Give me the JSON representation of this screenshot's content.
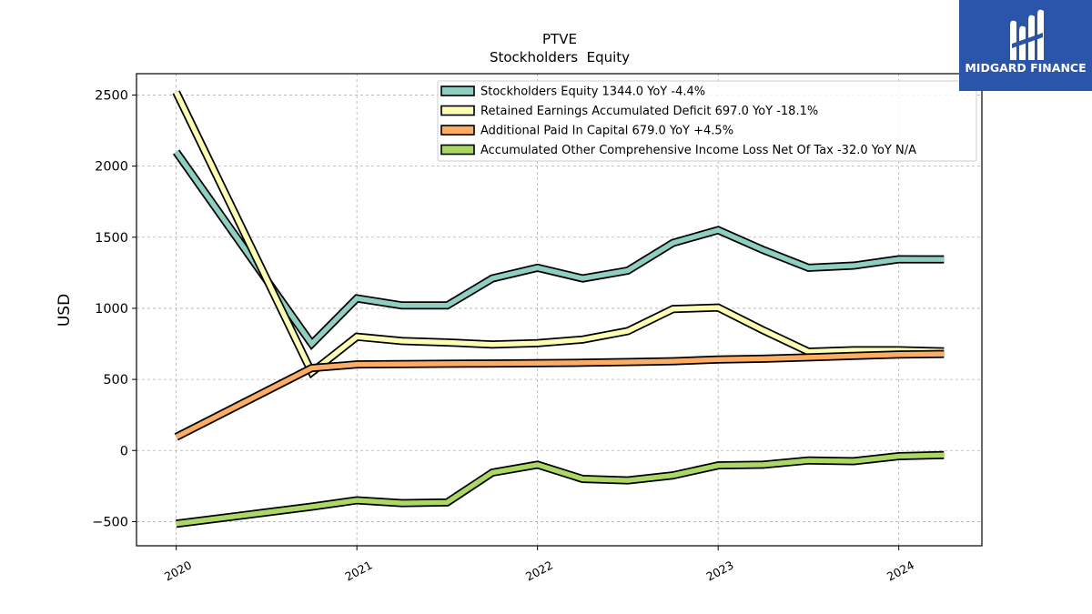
{
  "brand": {
    "name": "MIDGARD FINANCE",
    "background": "#2a55a8"
  },
  "chart_data": {
    "type": "line",
    "title": "PTVE",
    "subtitle": "Stockholders  Equity",
    "xlabel": "",
    "ylabel": "USD",
    "ylim": [
      -670,
      2650
    ],
    "xlim": [
      2019.78,
      2024.46
    ],
    "yticks": [
      -500,
      0,
      500,
      1000,
      1500,
      2000,
      2500
    ],
    "ytick_labels": [
      "−500",
      "0",
      "500",
      "1000",
      "1500",
      "2000",
      "2500"
    ],
    "xticks": [
      2020,
      2021,
      2022,
      2023,
      2024
    ],
    "xtick_labels": [
      "2020",
      "2021",
      "2022",
      "2023",
      "2024"
    ],
    "grid": true,
    "legend_position": "top-right",
    "x": [
      2020.0,
      2020.75,
      2021.0,
      2021.25,
      2021.5,
      2021.75,
      2022.0,
      2022.25,
      2022.5,
      2022.75,
      2023.0,
      2023.25,
      2023.5,
      2023.75,
      2024.0,
      2024.25
    ],
    "series": [
      {
        "name": "Stockholders Equity",
        "legend_label": "Stockholders Equity  1344.0 YoY -4.4%",
        "color": "#8ecfc2",
        "values": [
          2100,
          750,
          1070,
          1020,
          1020,
          1210,
          1285,
          1210,
          1265,
          1460,
          1550,
          1410,
          1285,
          1300,
          1345,
          1344
        ]
      },
      {
        "name": "Retained Earnings Accumulated Deficit",
        "legend_label": "Retained Earnings Accumulated Deficit  697.0 YoY -18.1%",
        "color": "#fdfdb4",
        "values": [
          2520,
          550,
          800,
          770,
          760,
          745,
          755,
          780,
          840,
          995,
          1005,
          845,
          695,
          705,
          705,
          697
        ]
      },
      {
        "name": "Additional Paid In Capital",
        "legend_label": "Additional Paid In Capital  679.0 YoY +4.5%",
        "color": "#fcac63",
        "values": [
          95,
          580,
          605,
          608,
          610,
          612,
          614,
          617,
          622,
          628,
          640,
          645,
          655,
          665,
          675,
          679
        ]
      },
      {
        "name": "Accumulated Other Comprehensive Income Loss Net Of Tax",
        "legend_label": "Accumulated Other Comprehensive Income Loss Net Of Tax  -32.0 YoY N/A",
        "color": "#abd865",
        "values": [
          -515,
          -395,
          -350,
          -370,
          -365,
          -155,
          -100,
          -200,
          -210,
          -175,
          -105,
          -100,
          -70,
          -75,
          -40,
          -32
        ]
      }
    ]
  }
}
